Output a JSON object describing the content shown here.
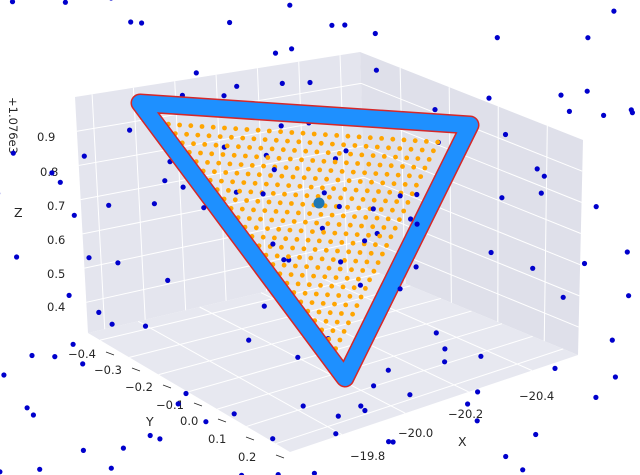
{
  "chart_data": {
    "type": "scatter",
    "projection": "3d",
    "style": "seaborn-darkgrid",
    "grid": true,
    "xlabel": "X",
    "ylabel": "Y",
    "zlabel": "Z",
    "z_offset_label": "+1.076e3",
    "x_ticks": [
      "−19.8",
      "−20.0",
      "−20.2",
      "−20.4"
    ],
    "y_ticks": [
      "−0.4",
      "−0.3",
      "−0.2",
      "−0.1",
      "0.0",
      "0.1",
      "0.2"
    ],
    "z_ticks": [
      "0.4",
      "0.5",
      "0.6",
      "0.7",
      "0.8",
      "0.9"
    ],
    "triangle_vertices": [
      {
        "x": -19.68,
        "y": -0.43,
        "z": 0.97
      },
      {
        "x": -20.53,
        "y": -0.05,
        "z": 0.97
      },
      {
        "x": -20.1,
        "y": 0.3,
        "z": 0.16
      }
    ],
    "centroid": {
      "x": -20.1,
      "y": -0.06,
      "z": 0.7
    },
    "series": [
      {
        "name": "",
        "kind": "triangle-edge-outer",
        "color": "#d62728"
      },
      {
        "name": "",
        "kind": "triangle-edge",
        "color": "#1e90ff"
      },
      {
        "name": "",
        "kind": "interior-grid-points",
        "color": "#ffa500"
      },
      {
        "name": "",
        "kind": "scattered-points",
        "color": "#0000cc"
      },
      {
        "name": "",
        "kind": "centroid-marker",
        "color": "#1f77b4"
      }
    ]
  }
}
